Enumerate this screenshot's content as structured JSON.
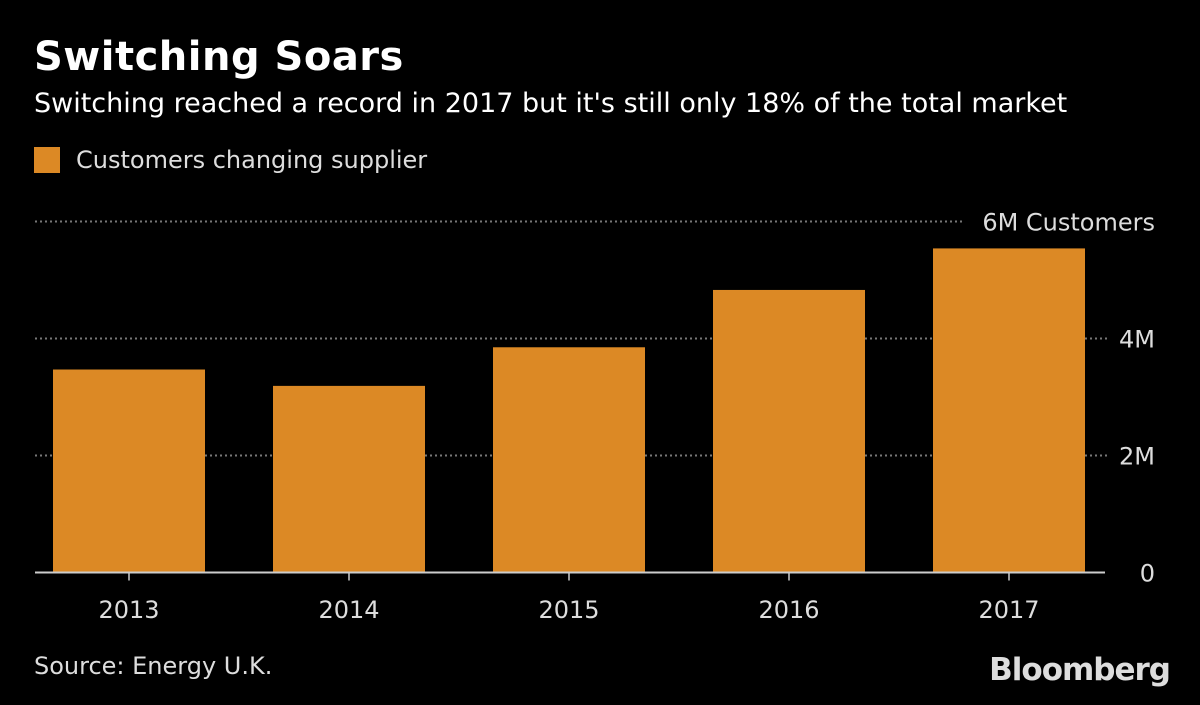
{
  "chart_data": {
    "type": "bar",
    "title": "Switching Soars",
    "subtitle": "Switching reached a record in 2017 but it's still only 18% of the total market",
    "categories": [
      "2013",
      "2014",
      "2015",
      "2016",
      "2017"
    ],
    "series": [
      {
        "name": "Customers changing supplier",
        "values": [
          3.47,
          3.19,
          3.85,
          4.83,
          5.54
        ],
        "color": "#dc8925"
      }
    ],
    "ylim": [
      0,
      6
    ],
    "yticks": [
      0,
      2,
      4,
      6
    ],
    "ytick_labels": [
      "0",
      "2M",
      "4M",
      "6M Customers"
    ],
    "unit": "millions",
    "grid": true,
    "legend_position": "top-left",
    "xlabel": "",
    "ylabel": ""
  },
  "legend_label": "Customers changing supplier",
  "source": "Source: Energy U.K.",
  "brand": "Bloomberg"
}
